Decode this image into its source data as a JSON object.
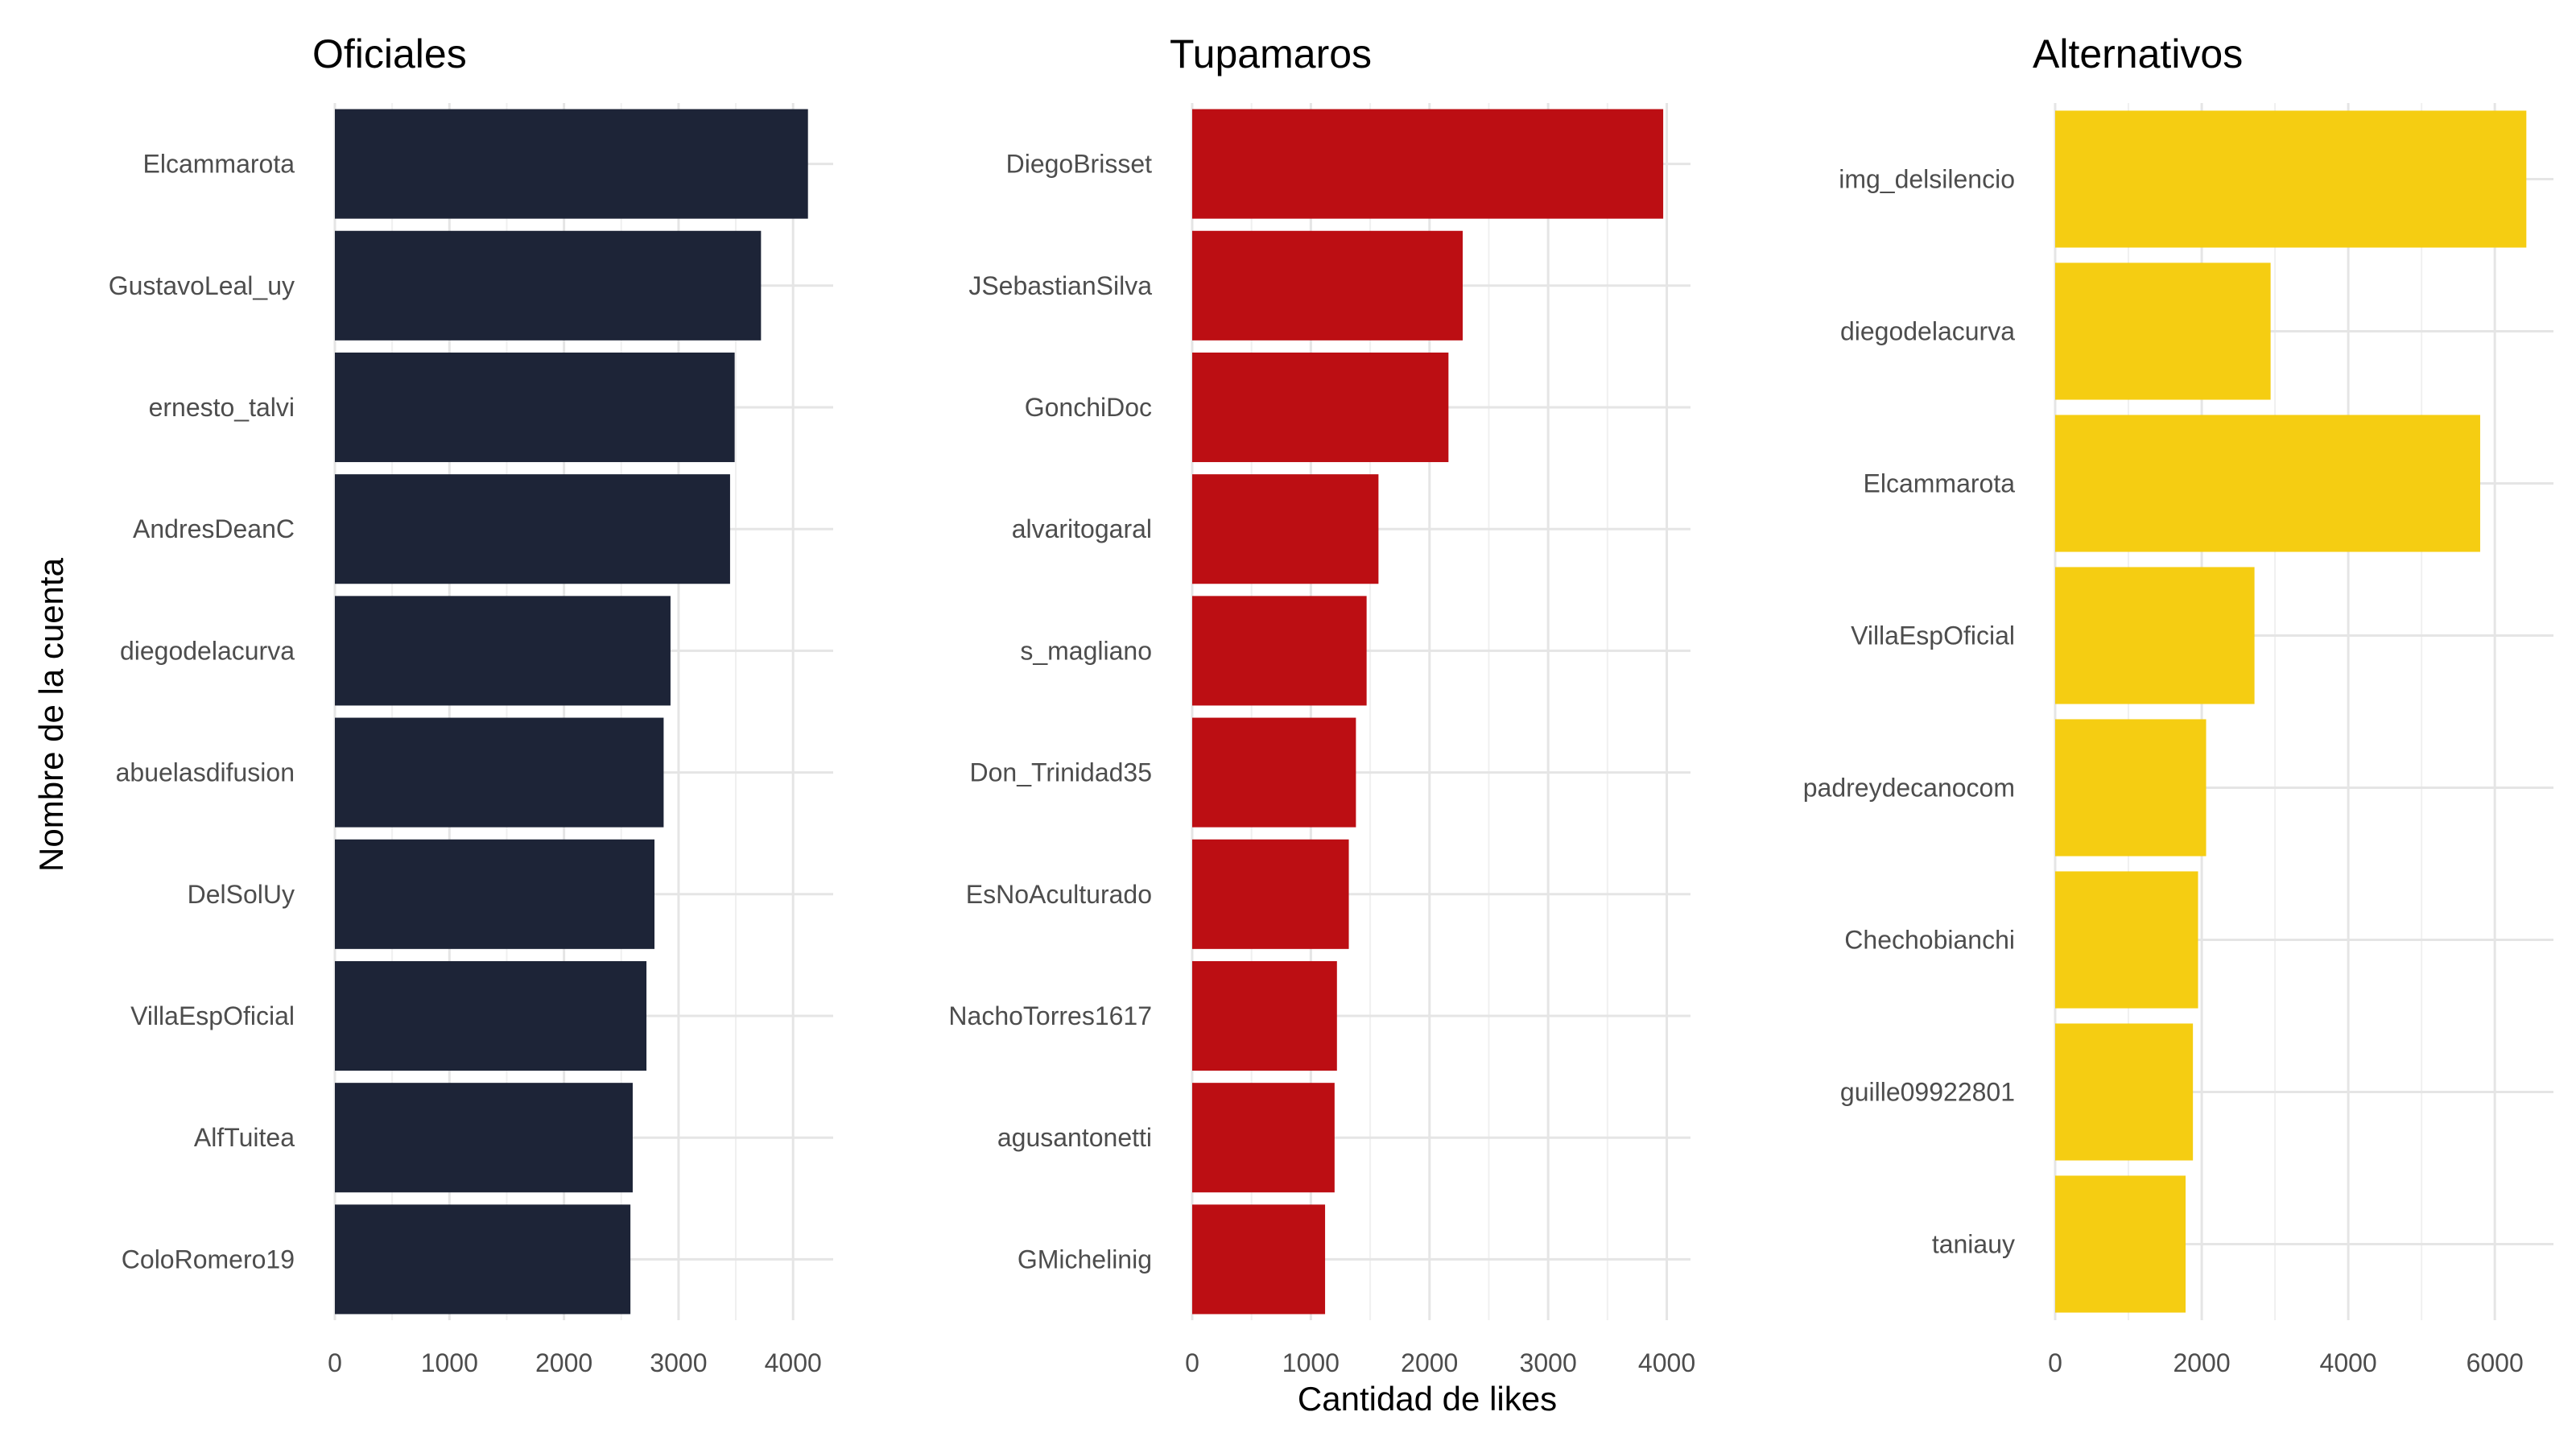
{
  "chart_data": {
    "type": "bar",
    "orientation": "horizontal",
    "ylabel": "Nombre de la cuenta",
    "xlabel": "Cantidad de likes",
    "grid": true,
    "panels": [
      {
        "title": "Oficiales",
        "color": "#1d2437",
        "xlim": [
          0,
          4350
        ],
        "xticks": [
          0,
          1000,
          2000,
          3000,
          4000
        ],
        "categories": [
          "Elcammarota",
          "GustavoLeal_uy",
          "ernesto_talvi",
          "AndresDeanC",
          "diegodelacurva",
          "abuelasdifusion",
          "DelSolUy",
          "VillaEspOficial",
          "AlfTuitea",
          "ColoRomero19"
        ],
        "values": [
          4130,
          3720,
          3490,
          3450,
          2930,
          2870,
          2790,
          2720,
          2600,
          2580
        ]
      },
      {
        "title": "Tupamaros",
        "color": "#bc0e13",
        "xlim": [
          0,
          4200
        ],
        "xticks": [
          0,
          1000,
          2000,
          3000,
          4000
        ],
        "categories": [
          "DiegoBrisset",
          "JSebastianSilva",
          "GonchiDoc",
          "alvaritogaral",
          "s_magliano",
          "Don_Trinidad35",
          "EsNoAculturado",
          "NachoTorres1617",
          "agusantonetti",
          "GMichelinig"
        ],
        "values": [
          3970,
          2280,
          2160,
          1570,
          1470,
          1380,
          1320,
          1220,
          1200,
          1120
        ]
      },
      {
        "title": "Alternativos",
        "color": "#f5cd12",
        "xlim": [
          0,
          6800
        ],
        "xticks": [
          0,
          2000,
          4000,
          6000
        ],
        "categories": [
          "img_delsilencio",
          "diegodelacurva",
          "Elcammarota",
          "VillaEspOficial",
          "padreydecanocom",
          "Chechobianchi",
          "guille09922801",
          "taniauy"
        ],
        "values": [
          6430,
          2940,
          5800,
          2720,
          2060,
          1950,
          1880,
          1780
        ]
      }
    ]
  }
}
